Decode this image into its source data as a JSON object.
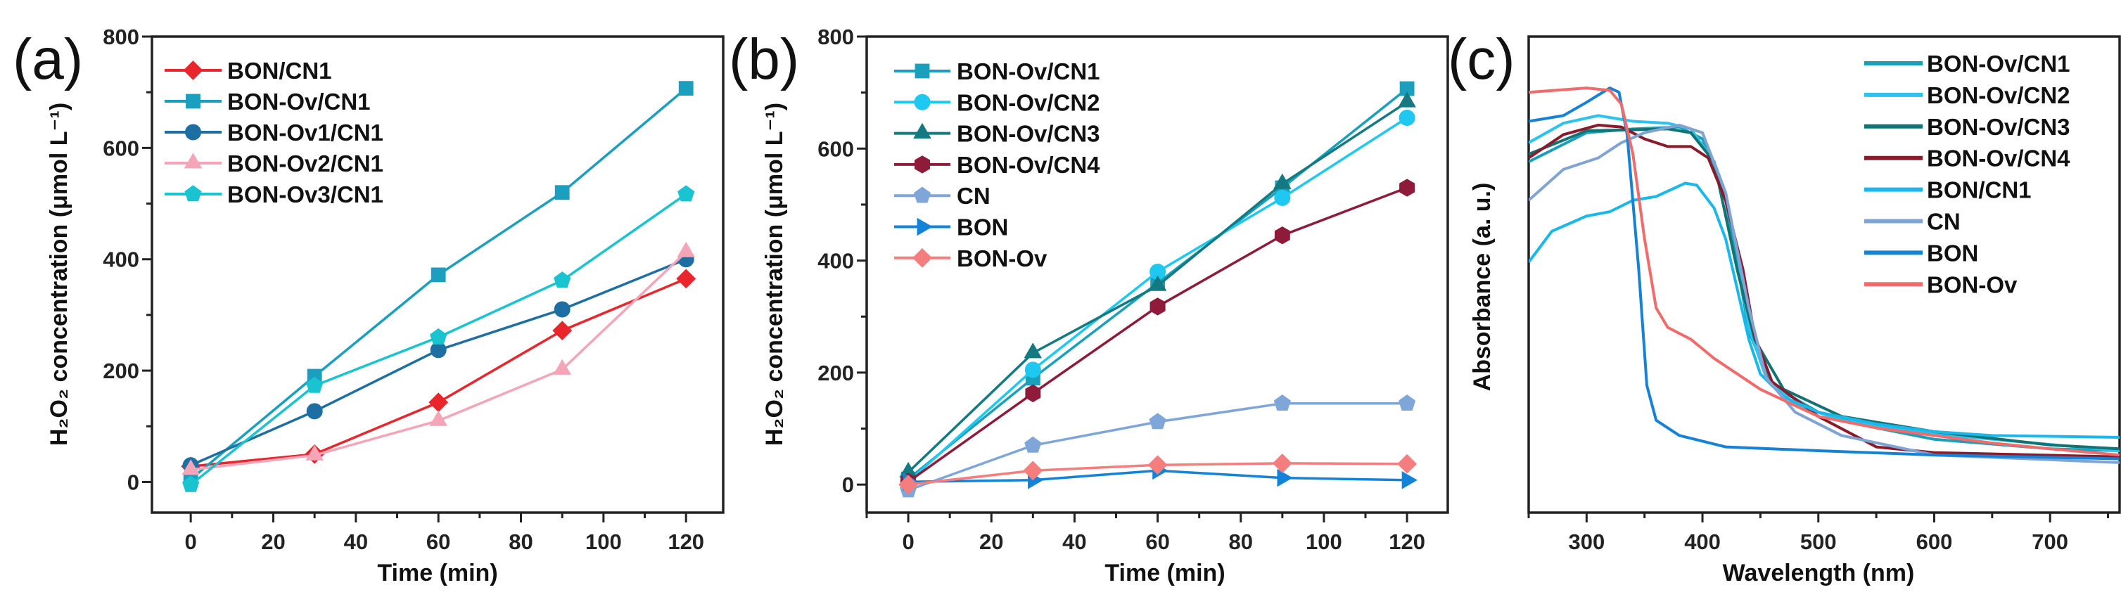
{
  "chart_data": [
    {
      "panel": "(a)",
      "type": "line",
      "xlabel": "Time (min)",
      "ylabel": "H₂O₂ concentration (μmol L⁻¹)",
      "xlim": [
        -9.4,
        129
      ],
      "ylim": [
        -55,
        800
      ],
      "xticks": [
        0,
        20,
        40,
        60,
        80,
        100,
        120
      ],
      "yticks": [
        0,
        200,
        400,
        600,
        800
      ],
      "x": [
        0,
        30,
        60,
        90,
        120
      ],
      "legend": "top-left",
      "series": [
        {
          "name": "BON/CN1",
          "color": "#e8262b",
          "marker": "diamond",
          "values": [
            28,
            50,
            143,
            272,
            365
          ]
        },
        {
          "name": "BON-Ov/CN1",
          "color": "#1a9fbf",
          "marker": "square",
          "values": [
            5,
            190,
            372,
            520,
            707
          ]
        },
        {
          "name": "BON-Ov1/CN1",
          "color": "#1d6ea3",
          "marker": "circle",
          "values": [
            30,
            127,
            237,
            310,
            400
          ]
        },
        {
          "name": "BON-Ov2/CN1",
          "color": "#f4a6b8",
          "marker": "triangle",
          "values": [
            22,
            48,
            110,
            202,
            413
          ]
        },
        {
          "name": "BON-Ov3/CN1",
          "color": "#19c3cf",
          "marker": "pentagon",
          "values": [
            -5,
            173,
            260,
            362,
            517
          ]
        }
      ]
    },
    {
      "panel": "(b)",
      "type": "line",
      "xlabel": "Time (min)",
      "ylabel": "H₂O₂ concentration (μmol L⁻¹)",
      "xlim": [
        -10,
        129.8
      ],
      "ylim": [
        -50,
        800
      ],
      "xticks": [
        0,
        20,
        40,
        60,
        80,
        100,
        120
      ],
      "yticks": [
        0,
        200,
        400,
        600,
        800
      ],
      "x": [
        0,
        30,
        60,
        90,
        120
      ],
      "legend": "top-left",
      "series": [
        {
          "name": "BON-Ov/CN1",
          "color": "#1a9fbc",
          "marker": "square",
          "values": [
            10,
            190,
            360,
            530,
            707
          ]
        },
        {
          "name": "BON-Ov/CN2",
          "color": "#1ec8f0",
          "marker": "circle",
          "values": [
            5,
            205,
            380,
            512,
            655
          ]
        },
        {
          "name": "BON-Ov/CN3",
          "color": "#127a80",
          "marker": "triangle",
          "values": [
            22,
            235,
            355,
            537,
            683
          ]
        },
        {
          "name": "BON-Ov/CN4",
          "color": "#8e1b3a",
          "marker": "hexagon",
          "values": [
            5,
            163,
            318,
            445,
            530
          ]
        },
        {
          "name": "CN",
          "color": "#7fa6d8",
          "marker": "pentagon",
          "values": [
            -10,
            70,
            112,
            145,
            145
          ]
        },
        {
          "name": "BON",
          "color": "#1283d8",
          "marker": "triangle-right",
          "values": [
            5,
            8,
            25,
            12,
            8
          ]
        },
        {
          "name": "BON-Ov",
          "color": "#f47d7d",
          "marker": "diamond",
          "values": [
            0,
            25,
            35,
            38,
            37
          ]
        }
      ]
    },
    {
      "panel": "(c)",
      "type": "line",
      "xlabel": "Wavelength (nm)",
      "ylabel": "Absorbance (a. u.)",
      "xlim": [
        250,
        760
      ],
      "ylim": [
        0,
        1
      ],
      "xticks": [
        300,
        400,
        500,
        600,
        700
      ],
      "yticks": [],
      "legend": "top-right",
      "series": [
        {
          "name": "BON-Ov/CN1",
          "color": "#1b9fb8",
          "points": [
            [
              250,
              0.737
            ],
            [
              300,
              0.798
            ],
            [
              340,
              0.806
            ],
            [
              380,
              0.81
            ],
            [
              400,
              0.785
            ],
            [
              420,
              0.656
            ],
            [
              430,
              0.526
            ],
            [
              440,
              0.38
            ],
            [
              460,
              0.267
            ],
            [
              500,
              0.211
            ],
            [
              550,
              0.178
            ],
            [
              600,
              0.154
            ],
            [
              700,
              0.134
            ],
            [
              760,
              0.13
            ]
          ]
        },
        {
          "name": "BON-Ov/CN2",
          "color": "#2cc4ee",
          "points": [
            [
              250,
              0.777
            ],
            [
              280,
              0.818
            ],
            [
              310,
              0.834
            ],
            [
              340,
              0.822
            ],
            [
              370,
              0.818
            ],
            [
              390,
              0.806
            ],
            [
              410,
              0.737
            ],
            [
              420,
              0.672
            ],
            [
              430,
              0.551
            ],
            [
              440,
              0.389
            ],
            [
              455,
              0.283
            ],
            [
              480,
              0.227
            ],
            [
              520,
              0.194
            ],
            [
              600,
              0.165
            ],
            [
              760,
              0.13
            ]
          ]
        },
        {
          "name": "BON-Ov/CN3",
          "color": "#117373",
          "points": [
            [
              250,
              0.753
            ],
            [
              300,
              0.802
            ],
            [
              370,
              0.806
            ],
            [
              390,
              0.798
            ],
            [
              410,
              0.737
            ],
            [
              430,
              0.51
            ],
            [
              445,
              0.364
            ],
            [
              470,
              0.259
            ],
            [
              520,
              0.202
            ],
            [
              600,
              0.17
            ],
            [
              700,
              0.142
            ],
            [
              760,
              0.134
            ]
          ]
        },
        {
          "name": "BON-Ov/CN4",
          "color": "#8b1a2a",
          "points": [
            [
              250,
              0.745
            ],
            [
              280,
              0.794
            ],
            [
              310,
              0.814
            ],
            [
              330,
              0.81
            ],
            [
              350,
              0.785
            ],
            [
              370,
              0.769
            ],
            [
              390,
              0.769
            ],
            [
              405,
              0.745
            ],
            [
              420,
              0.656
            ],
            [
              435,
              0.51
            ],
            [
              445,
              0.372
            ],
            [
              460,
              0.275
            ],
            [
              500,
              0.202
            ],
            [
              550,
              0.138
            ],
            [
              600,
              0.126
            ],
            [
              760,
              0.117
            ]
          ]
        },
        {
          "name": "BON/CN1",
          "color": "#1ab8ea",
          "points": [
            [
              250,
              0.526
            ],
            [
              270,
              0.591
            ],
            [
              300,
              0.623
            ],
            [
              320,
              0.632
            ],
            [
              340,
              0.656
            ],
            [
              360,
              0.664
            ],
            [
              385,
              0.692
            ],
            [
              395,
              0.688
            ],
            [
              410,
              0.64
            ],
            [
              420,
              0.575
            ],
            [
              430,
              0.47
            ],
            [
              440,
              0.364
            ],
            [
              450,
              0.291
            ],
            [
              470,
              0.243
            ],
            [
              500,
              0.211
            ],
            [
              550,
              0.186
            ],
            [
              600,
              0.17
            ],
            [
              650,
              0.162
            ],
            [
              760,
              0.158
            ]
          ]
        },
        {
          "name": "CN",
          "color": "#7fa4d4",
          "points": [
            [
              250,
              0.656
            ],
            [
              280,
              0.721
            ],
            [
              310,
              0.745
            ],
            [
              330,
              0.777
            ],
            [
              350,
              0.798
            ],
            [
              380,
              0.814
            ],
            [
              400,
              0.798
            ],
            [
              420,
              0.672
            ],
            [
              440,
              0.43
            ],
            [
              455,
              0.283
            ],
            [
              480,
              0.211
            ],
            [
              520,
              0.162
            ],
            [
              600,
              0.121
            ],
            [
              760,
              0.105
            ]
          ]
        },
        {
          "name": "BON",
          "color": "#1582d6",
          "points": [
            [
              250,
              0.822
            ],
            [
              280,
              0.834
            ],
            [
              300,
              0.862
            ],
            [
              320,
              0.892
            ],
            [
              328,
              0.883
            ],
            [
              335,
              0.794
            ],
            [
              345,
              0.51
            ],
            [
              352,
              0.267
            ],
            [
              360,
              0.194
            ],
            [
              380,
              0.162
            ],
            [
              420,
              0.138
            ],
            [
              500,
              0.13
            ],
            [
              600,
              0.121
            ],
            [
              760,
              0.113
            ]
          ]
        },
        {
          "name": "BON-Ov",
          "color": "#f26b6b",
          "points": [
            [
              250,
              0.883
            ],
            [
              300,
              0.892
            ],
            [
              320,
              0.887
            ],
            [
              330,
              0.858
            ],
            [
              340,
              0.753
            ],
            [
              350,
              0.575
            ],
            [
              360,
              0.43
            ],
            [
              370,
              0.389
            ],
            [
              390,
              0.364
            ],
            [
              410,
              0.324
            ],
            [
              450,
              0.259
            ],
            [
              500,
              0.202
            ],
            [
              550,
              0.178
            ],
            [
              600,
              0.162
            ],
            [
              650,
              0.146
            ],
            [
              700,
              0.134
            ],
            [
              760,
              0.121
            ]
          ]
        }
      ]
    }
  ]
}
